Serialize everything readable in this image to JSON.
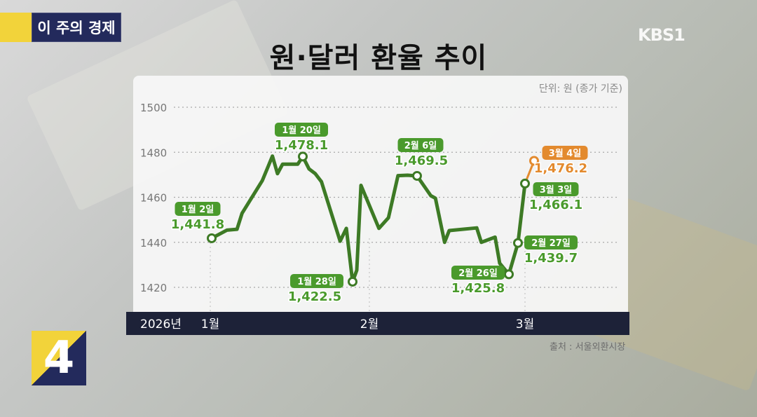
{
  "header": {
    "segment_badge": "이 주의 경제",
    "title": "원·달러 환율 추이",
    "channel_logo": "KBS1",
    "program_number": "4"
  },
  "colors": {
    "line": "#3d7a25",
    "label_green": "#4a9a2c",
    "label_orange": "#e38a2e",
    "axis_bar": "#1d2238"
  },
  "chart_data": {
    "type": "line",
    "title": "원·달러 환율 추이",
    "unit_note": "단위: 원 (종가 기준)",
    "source": "출처 : 서울외환시장",
    "year_label": "2026년",
    "x_ticks": [
      {
        "date": "2026-01-01",
        "label": "1월"
      },
      {
        "date": "2026-02-01",
        "label": "2월"
      },
      {
        "date": "2026-03-01",
        "label": "3월"
      }
    ],
    "y_ticks": [
      1420,
      1440,
      1460,
      1480,
      1500
    ],
    "ylim": [
      1415,
      1505
    ],
    "grid": "dotted horizontal",
    "series": [
      {
        "points": [
          [
            "2026-01-02",
            1441.8
          ],
          [
            "2026-01-05",
            1445.4
          ],
          [
            "2026-01-07",
            1445.8
          ],
          [
            "2026-01-08",
            1452.9
          ],
          [
            "2026-01-12",
            1467.4
          ],
          [
            "2026-01-14",
            1478.3
          ],
          [
            "2026-01-15",
            1470.5
          ],
          [
            "2026-01-16",
            1474.7
          ],
          [
            "2026-01-19",
            1474.7
          ],
          [
            "2026-01-20",
            1478.1
          ],
          [
            "2026-01-21",
            1472.6
          ],
          [
            "2026-01-22",
            1470.5
          ],
          [
            "2026-01-23",
            1466.9
          ],
          [
            "2026-01-26",
            1440.5
          ],
          [
            "2026-01-27",
            1446.2
          ],
          [
            "2026-01-28",
            1422.5
          ],
          [
            "2026-01-29",
            1427.6
          ],
          [
            "2026-01-30",
            1465.3
          ],
          [
            "2026-02-02",
            1446.2
          ],
          [
            "2026-02-03",
            1450.9
          ],
          [
            "2026-02-04",
            1469.6
          ],
          [
            "2026-02-05",
            1469.8
          ],
          [
            "2026-02-06",
            1469.5
          ],
          [
            "2026-02-09",
            1460.7
          ],
          [
            "2026-02-10",
            1459.6
          ],
          [
            "2026-02-12",
            1440.0
          ],
          [
            "2026-02-13",
            1445.2
          ],
          [
            "2026-02-19",
            1446.4
          ],
          [
            "2026-02-20",
            1440.0
          ],
          [
            "2026-02-23",
            1442.3
          ],
          [
            "2026-02-24",
            1430.7
          ],
          [
            "2026-02-26",
            1425.8
          ],
          [
            "2026-02-27",
            1439.7
          ],
          [
            "2026-03-03",
            1466.1
          ],
          [
            "2026-03-04",
            1476.2
          ]
        ]
      }
    ],
    "annotations": [
      {
        "date": "2026-01-02",
        "label": "1월 2일",
        "value": "1,441.8",
        "color": "green"
      },
      {
        "date": "2026-01-20",
        "label": "1월 20일",
        "value": "1,478.1",
        "color": "green"
      },
      {
        "date": "2026-01-28",
        "label": "1월 28일",
        "value": "1,422.5",
        "color": "green"
      },
      {
        "date": "2026-02-06",
        "label": "2월 6일",
        "value": "1,469.5",
        "color": "green"
      },
      {
        "date": "2026-02-26",
        "label": "2월 26일",
        "value": "1,425.8",
        "color": "green"
      },
      {
        "date": "2026-02-27",
        "label": "2월 27일",
        "value": "1,439.7",
        "color": "green"
      },
      {
        "date": "2026-03-03",
        "label": "3월 3일",
        "value": "1,466.1",
        "color": "green"
      },
      {
        "date": "2026-03-04",
        "label": "3월 4일",
        "value": "1,476.2",
        "color": "orange"
      }
    ]
  }
}
